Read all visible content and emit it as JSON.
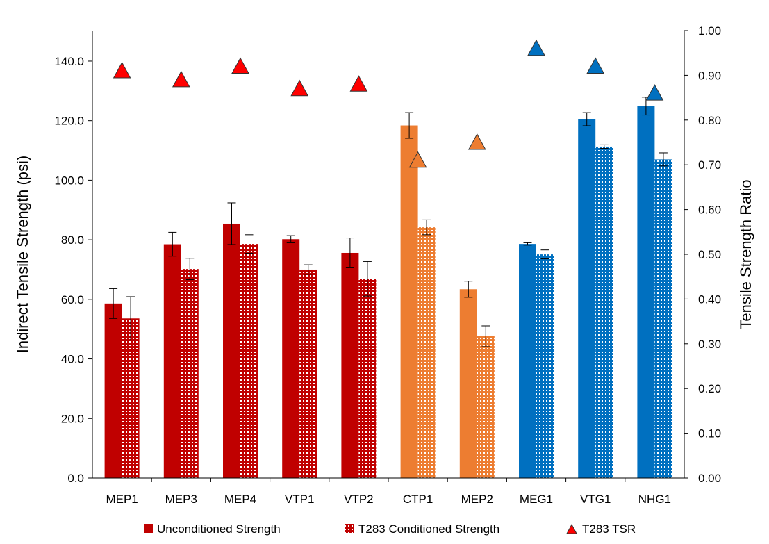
{
  "chart_data": {
    "type": "bar",
    "categories": [
      "MEP1",
      "MEP3",
      "MEP4",
      "VTP1",
      "VTP2",
      "CTP1",
      "MEP2",
      "MEG1",
      "VTG1",
      "NHG1"
    ],
    "category_colors": [
      "#C00000",
      "#C00000",
      "#C00000",
      "#C00000",
      "#C00000",
      "#ED7D31",
      "#ED7D31",
      "#0070C0",
      "#0070C0",
      "#0070C0"
    ],
    "series": [
      {
        "name": "Unconditioned Strength",
        "axis": "left",
        "pattern": "solid",
        "values": [
          58.6,
          78.5,
          85.4,
          80.2,
          75.6,
          118.4,
          63.4,
          78.6,
          120.5,
          124.9
        ],
        "error": [
          5.0,
          4.0,
          7.0,
          1.2,
          5.0,
          4.3,
          2.7,
          0.4,
          2.2,
          3.0
        ]
      },
      {
        "name": "T283 Conditioned Strength",
        "axis": "left",
        "pattern": "dotted",
        "values": [
          53.6,
          70.2,
          78.6,
          70.0,
          66.9,
          84.2,
          47.6,
          75.1,
          111.3,
          107.0
        ],
        "error": [
          7.3,
          3.6,
          3.1,
          1.6,
          5.8,
          2.5,
          3.5,
          1.5,
          0.6,
          2.2
        ]
      },
      {
        "name": "T283 TSR",
        "axis": "right",
        "marker": "triangle",
        "values": [
          0.91,
          0.89,
          0.92,
          0.87,
          0.88,
          0.71,
          0.75,
          0.96,
          0.92,
          0.86
        ]
      }
    ],
    "ylabel": "Indirect Tensile Strength (psi)",
    "y2label": "Tensile Strength Ratio",
    "ylim": [
      0,
      150
    ],
    "y2lim": [
      0,
      1.0
    ],
    "yticks": [
      "0.0",
      "20.0",
      "40.0",
      "60.0",
      "80.0",
      "100.0",
      "120.0",
      "140.0"
    ],
    "y2ticks": [
      "0.00",
      "0.10",
      "0.20",
      "0.30",
      "0.40",
      "0.50",
      "0.60",
      "0.70",
      "0.80",
      "0.90",
      "1.00"
    ],
    "grid": false,
    "legend_position": "bottom"
  }
}
